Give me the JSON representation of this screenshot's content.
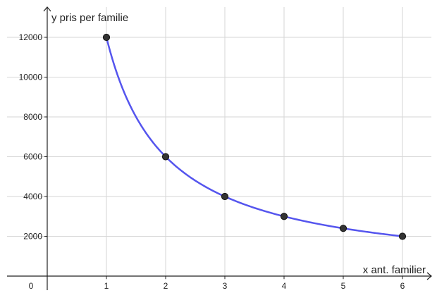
{
  "chart_data": {
    "type": "line",
    "title": "",
    "xlabel": "x ant. familier",
    "ylabel": "y pris per familie",
    "origin_label": "0",
    "xlim": [
      -0.05,
      6.4
    ],
    "ylim": [
      -500,
      13000
    ],
    "x_ticks": [
      1,
      2,
      3,
      4,
      5,
      6
    ],
    "y_ticks": [
      2000,
      4000,
      6000,
      8000,
      10000,
      12000
    ],
    "grid": true,
    "series": [
      {
        "function": "y = 12000 / x",
        "curve_color": "#5555ee",
        "x": [
          1,
          2,
          3,
          4,
          5,
          6
        ],
        "y": [
          12000,
          6000,
          4000,
          3000,
          2400,
          2000
        ],
        "point_color": "#333333"
      }
    ]
  }
}
